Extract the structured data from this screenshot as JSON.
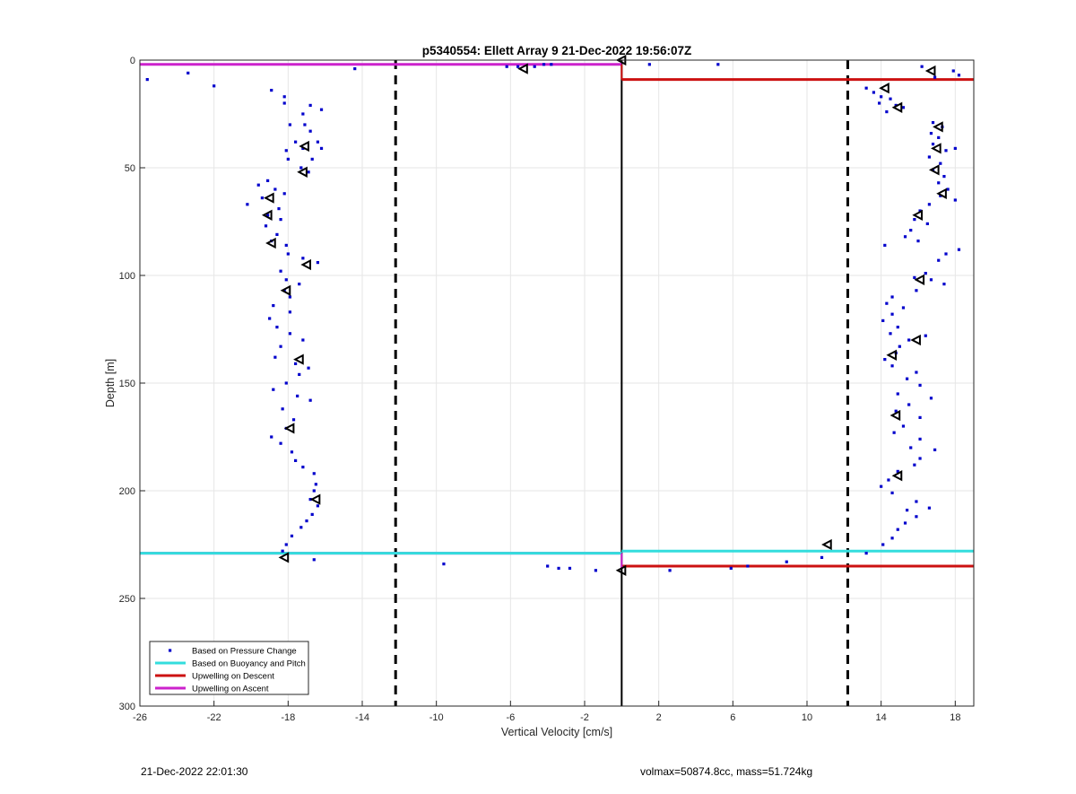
{
  "chart_data": {
    "type": "scatter",
    "title": "p5340554: Ellett Array 9 21-Dec-2022 19:56:07Z",
    "xlabel": "Vertical Velocity [cm/s]",
    "ylabel": "Depth [m]",
    "xlim": [
      -26,
      19
    ],
    "ylim": [
      0,
      300
    ],
    "y_reversed": true,
    "grid": true,
    "xticks": [
      -26,
      -22,
      -18,
      -14,
      -10,
      -6,
      -2,
      2,
      6,
      10,
      14,
      18
    ],
    "yticks": [
      0,
      50,
      100,
      150,
      200,
      250,
      300
    ],
    "legend_position": "bottom-left",
    "legend": [
      {
        "label": "Based on Pressure Change",
        "color": "#0000cc",
        "kind": "dot"
      },
      {
        "label": "Based on Buoyancy and Pitch",
        "color": "#33dddd",
        "kind": "line"
      },
      {
        "label": "Upwelling on Descent",
        "color": "#cc1111",
        "kind": "line"
      },
      {
        "label": "Upwelling on Ascent",
        "color": "#cc22cc",
        "kind": "line"
      }
    ],
    "vlines": [
      {
        "x": -12.2,
        "style": "dashed",
        "color": "#000000"
      },
      {
        "x": 12.2,
        "style": "dashed",
        "color": "#000000"
      },
      {
        "x": 0,
        "style": "solid",
        "color": "#000000"
      }
    ],
    "hlines": [
      {
        "series": "Upwelling on Ascent",
        "y": 2,
        "x0": -26,
        "x1": 0,
        "color": "#cc22cc"
      },
      {
        "series": "Upwelling on Ascent",
        "y": 229,
        "x0": -26,
        "x1": 0,
        "color": "#cc22cc"
      },
      {
        "series": "Upwelling on Ascent",
        "y": 229,
        "x0": -26,
        "x1": 0,
        "color": "#33dddd"
      },
      {
        "series": "Based on Buoyancy and Pitch",
        "y": 228,
        "x0": 0,
        "x1": 19,
        "color": "#33dddd"
      },
      {
        "series": "Upwelling on Descent",
        "y": 9,
        "x0": 0,
        "x1": 19,
        "color": "#cc1111"
      },
      {
        "series": "Upwelling on Descent",
        "y": 235,
        "x0": 0,
        "x1": 19,
        "color": "#cc1111"
      }
    ],
    "series": [
      {
        "name": "Based on Pressure Change",
        "color": "#0000cc",
        "points": [
          [
            -25.6,
            9
          ],
          [
            -23.4,
            6
          ],
          [
            -22,
            12
          ],
          [
            -14.4,
            4
          ],
          [
            -6.2,
            3
          ],
          [
            -5.6,
            3
          ],
          [
            -4.7,
            3
          ],
          [
            -4.2,
            2
          ],
          [
            -3.8,
            2
          ],
          [
            1.5,
            2
          ],
          [
            5.2,
            2
          ],
          [
            -18.9,
            14
          ],
          [
            -18.2,
            17
          ],
          [
            -18.2,
            20
          ],
          [
            -17.2,
            25
          ],
          [
            -16.8,
            21
          ],
          [
            -16.2,
            23
          ],
          [
            -17.9,
            30
          ],
          [
            -17.1,
            30
          ],
          [
            -16.8,
            33
          ],
          [
            -17.6,
            38
          ],
          [
            -16.4,
            38
          ],
          [
            -17.2,
            41
          ],
          [
            -18.1,
            42
          ],
          [
            -16.2,
            41
          ],
          [
            -18.0,
            46
          ],
          [
            -16.7,
            46
          ],
          [
            -17.3,
            50
          ],
          [
            -16.9,
            52
          ],
          [
            -19.1,
            56
          ],
          [
            -19.6,
            58
          ],
          [
            -18.7,
            60
          ],
          [
            -18.2,
            62
          ],
          [
            -19.4,
            64
          ],
          [
            -20.2,
            67
          ],
          [
            -18.5,
            69
          ],
          [
            -19.1,
            72
          ],
          [
            -18.4,
            74
          ],
          [
            -19.2,
            77
          ],
          [
            -18.6,
            81
          ],
          [
            -18.9,
            84
          ],
          [
            -18.1,
            86
          ],
          [
            -18.0,
            90
          ],
          [
            -17.2,
            92
          ],
          [
            -16.4,
            94
          ],
          [
            -18.4,
            98
          ],
          [
            -18.1,
            102
          ],
          [
            -17.4,
            104
          ],
          [
            -18.2,
            107
          ],
          [
            -17.9,
            110
          ],
          [
            -18.8,
            114
          ],
          [
            -17.9,
            117
          ],
          [
            -19.0,
            120
          ],
          [
            -18.6,
            124
          ],
          [
            -17.9,
            127
          ],
          [
            -17.2,
            130
          ],
          [
            -18.4,
            133
          ],
          [
            -18.7,
            138
          ],
          [
            -17.6,
            141
          ],
          [
            -16.9,
            143
          ],
          [
            -17.4,
            146
          ],
          [
            -18.1,
            150
          ],
          [
            -18.8,
            153
          ],
          [
            -17.5,
            156
          ],
          [
            -16.8,
            158
          ],
          [
            -18.3,
            162
          ],
          [
            -17.7,
            167
          ],
          [
            -18.1,
            171
          ],
          [
            -18.9,
            175
          ],
          [
            -18.4,
            178
          ],
          [
            -17.8,
            182
          ],
          [
            -17.6,
            186
          ],
          [
            -17.2,
            189
          ],
          [
            -16.6,
            192
          ],
          [
            -16.5,
            197
          ],
          [
            -16.6,
            200
          ],
          [
            -16.8,
            204
          ],
          [
            -16.4,
            207
          ],
          [
            -16.7,
            211
          ],
          [
            -17.0,
            214
          ],
          [
            -17.3,
            217
          ],
          [
            -17.8,
            221
          ],
          [
            -18.1,
            225
          ],
          [
            -18.3,
            228
          ],
          [
            -16.6,
            232
          ],
          [
            -9.6,
            234
          ],
          [
            -4.0,
            235
          ],
          [
            -3.4,
            236
          ],
          [
            -2.8,
            236
          ],
          [
            -1.4,
            237
          ],
          [
            2.6,
            237
          ],
          [
            5.9,
            236
          ],
          [
            6.8,
            235
          ],
          [
            8.9,
            233
          ],
          [
            10.8,
            231
          ],
          [
            16.2,
            3
          ],
          [
            17.9,
            5
          ],
          [
            18.2,
            7
          ],
          [
            16.9,
            8
          ],
          [
            13.2,
            13
          ],
          [
            13.6,
            15
          ],
          [
            14.0,
            17
          ],
          [
            14.5,
            18
          ],
          [
            13.9,
            20
          ],
          [
            14.8,
            21
          ],
          [
            14.3,
            24
          ],
          [
            15.2,
            22
          ],
          [
            16.8,
            29
          ],
          [
            17.3,
            31
          ],
          [
            16.7,
            34
          ],
          [
            17.1,
            36
          ],
          [
            16.8,
            39
          ],
          [
            17.5,
            42
          ],
          [
            18.0,
            41
          ],
          [
            16.6,
            45
          ],
          [
            17.2,
            48
          ],
          [
            16.8,
            51
          ],
          [
            17.4,
            54
          ],
          [
            17.1,
            57
          ],
          [
            17.6,
            60
          ],
          [
            17.2,
            63
          ],
          [
            18.0,
            65
          ],
          [
            16.6,
            67
          ],
          [
            16.1,
            70
          ],
          [
            15.8,
            74
          ],
          [
            16.5,
            76
          ],
          [
            15.6,
            79
          ],
          [
            15.3,
            82
          ],
          [
            16.0,
            84
          ],
          [
            14.2,
            86
          ],
          [
            18.2,
            88
          ],
          [
            17.5,
            90
          ],
          [
            17.1,
            93
          ],
          [
            16.4,
            99
          ],
          [
            15.8,
            101
          ],
          [
            16.7,
            102
          ],
          [
            17.4,
            104
          ],
          [
            15.9,
            107
          ],
          [
            14.6,
            110
          ],
          [
            14.3,
            113
          ],
          [
            15.2,
            115
          ],
          [
            14.6,
            118
          ],
          [
            14.1,
            121
          ],
          [
            14.9,
            124
          ],
          [
            14.5,
            127
          ],
          [
            15.5,
            130
          ],
          [
            16.4,
            128
          ],
          [
            15.0,
            133
          ],
          [
            14.8,
            136
          ],
          [
            14.2,
            139
          ],
          [
            14.6,
            142
          ],
          [
            15.9,
            145
          ],
          [
            15.4,
            148
          ],
          [
            16.1,
            151
          ],
          [
            14.9,
            155
          ],
          [
            16.7,
            157
          ],
          [
            15.5,
            160
          ],
          [
            14.8,
            163
          ],
          [
            16.1,
            166
          ],
          [
            15.2,
            170
          ],
          [
            14.7,
            173
          ],
          [
            16.1,
            176
          ],
          [
            15.6,
            180
          ],
          [
            16.9,
            181
          ],
          [
            16.1,
            185
          ],
          [
            15.8,
            188
          ],
          [
            14.9,
            191
          ],
          [
            14.4,
            195
          ],
          [
            14.0,
            198
          ],
          [
            14.6,
            201
          ],
          [
            15.9,
            205
          ],
          [
            15.4,
            209
          ],
          [
            16.6,
            208
          ],
          [
            15.9,
            212
          ],
          [
            15.3,
            215
          ],
          [
            14.9,
            218
          ],
          [
            14.6,
            222
          ],
          [
            14.1,
            225
          ],
          [
            13.2,
            229
          ]
        ]
      },
      {
        "name": "Based on Buoyancy and Pitch",
        "color": "#000000",
        "markers": [
          [
            0,
            0
          ],
          [
            -5.3,
            4
          ],
          [
            16.7,
            5
          ],
          [
            14.2,
            13
          ],
          [
            14.9,
            22
          ],
          [
            17.1,
            31
          ],
          [
            -17.1,
            40
          ],
          [
            17.0,
            41
          ],
          [
            -17.2,
            52
          ],
          [
            16.9,
            51
          ],
          [
            17.3,
            62
          ],
          [
            -19.0,
            64
          ],
          [
            -19.1,
            72
          ],
          [
            16.0,
            72
          ],
          [
            -18.9,
            85
          ],
          [
            -17.0,
            95
          ],
          [
            16.1,
            102
          ],
          [
            -18.1,
            107
          ],
          [
            15.9,
            130
          ],
          [
            14.6,
            137
          ],
          [
            -17.4,
            139
          ],
          [
            14.8,
            165
          ],
          [
            -17.9,
            171
          ],
          [
            14.9,
            193
          ],
          [
            -16.5,
            204
          ],
          [
            11.1,
            225
          ],
          [
            -18.2,
            231
          ],
          [
            0,
            237
          ]
        ]
      }
    ]
  },
  "footer": {
    "timestamp": "21-Dec-2022 22:01:30",
    "info": "volmax=50874.8cc, mass=51.724kg"
  }
}
